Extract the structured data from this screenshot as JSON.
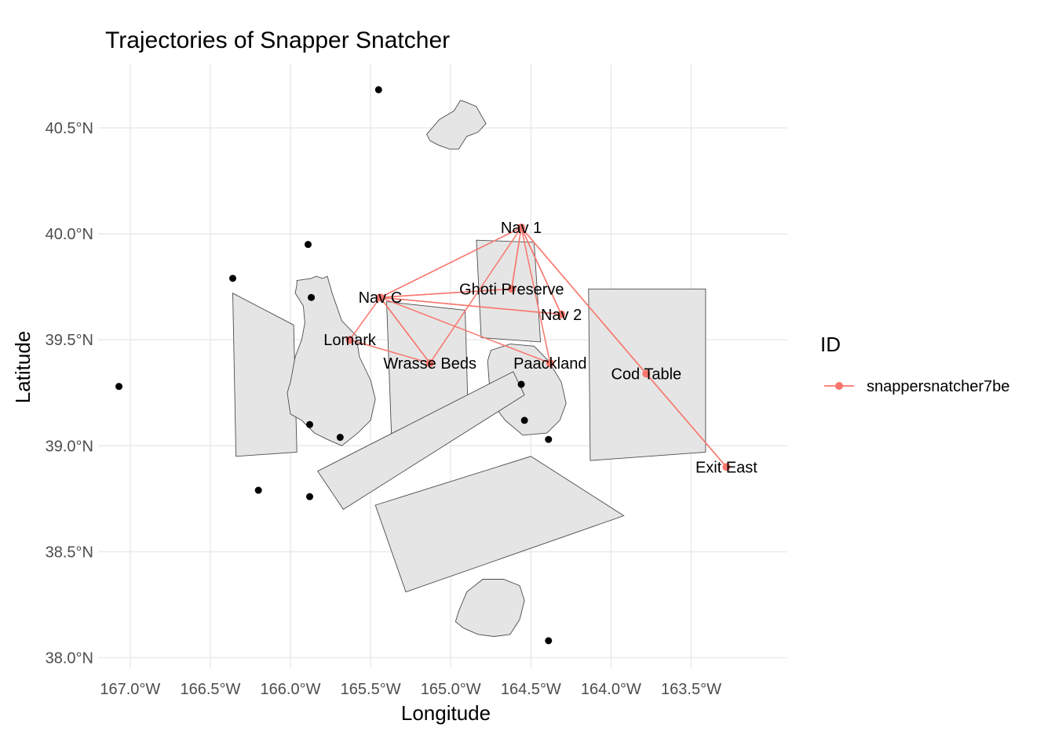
{
  "chart_data": {
    "type": "scatter",
    "title": "Trajectories of Snapper Snatcher",
    "xlabel": "Longitude",
    "ylabel": "Latitude",
    "xlim": [
      -167.2,
      -162.9
    ],
    "ylim": [
      37.95,
      40.8
    ],
    "x_ticks": [
      -167.0,
      -166.5,
      -166.0,
      -165.5,
      -165.0,
      -164.5,
      -164.0,
      -163.5
    ],
    "x_tick_labels": [
      "167.0°W",
      "166.5°W",
      "166.0°W",
      "165.5°W",
      "165.0°W",
      "164.5°W",
      "164.0°W",
      "163.5°W"
    ],
    "y_ticks": [
      38.0,
      38.5,
      39.0,
      39.5,
      40.0,
      40.5
    ],
    "y_tick_labels": [
      "38.0°N",
      "38.5°N",
      "39.0°N",
      "39.5°N",
      "40.0°N",
      "40.5°N"
    ],
    "grid": true,
    "legend": {
      "title": "ID",
      "position": "right",
      "entries": [
        {
          "label": "snappersnatcher7be",
          "color": "#F8766D"
        }
      ]
    },
    "locations": [
      {
        "name": "Nav 1",
        "x": -164.56,
        "y": 40.03
      },
      {
        "name": "Nav C",
        "x": -165.44,
        "y": 39.7
      },
      {
        "name": "Ghoti Preserve",
        "x": -164.62,
        "y": 39.74
      },
      {
        "name": "Nav 2",
        "x": -164.31,
        "y": 39.62
      },
      {
        "name": "Lomark",
        "x": -165.63,
        "y": 39.5
      },
      {
        "name": "Wrasse Beds",
        "x": -165.13,
        "y": 39.39
      },
      {
        "name": "Paackland",
        "x": -164.38,
        "y": 39.39
      },
      {
        "name": "Cod Table",
        "x": -163.78,
        "y": 39.34
      },
      {
        "name": "Exit East",
        "x": -163.28,
        "y": 38.9
      }
    ],
    "trajectory": {
      "id": "snappersnatcher7be",
      "color": "#F8766D",
      "path": [
        "Lomark",
        "Nav C",
        "Nav 1",
        "Wrasse Beds",
        "Nav C",
        "Ghoti Preserve",
        "Nav 1",
        "Nav 2",
        "Nav C",
        "Nav 1",
        "Paackland",
        "Nav C",
        "Nav 2",
        "Nav 1",
        "Cod Table",
        "Exit East",
        "Cod Table",
        "Nav 1",
        "Ghoti Preserve",
        "Nav C",
        "Wrasse Beds",
        "Lomark"
      ]
    },
    "black_points": [
      {
        "x": -165.45,
        "y": 40.68
      },
      {
        "x": -165.89,
        "y": 39.95
      },
      {
        "x": -166.36,
        "y": 39.79
      },
      {
        "x": -165.87,
        "y": 39.7
      },
      {
        "x": -167.07,
        "y": 39.28
      },
      {
        "x": -164.56,
        "y": 39.29
      },
      {
        "x": -164.54,
        "y": 39.12
      },
      {
        "x": -165.88,
        "y": 39.1
      },
      {
        "x": -165.69,
        "y": 39.04
      },
      {
        "x": -164.39,
        "y": 39.03
      },
      {
        "x": -166.2,
        "y": 38.79
      },
      {
        "x": -165.88,
        "y": 38.76
      },
      {
        "x": -164.39,
        "y": 38.08
      }
    ],
    "regions": [
      {
        "name": "north-island",
        "points": [
          [
            -165.15,
            40.47
          ],
          [
            -165.07,
            40.54
          ],
          [
            -164.98,
            40.58
          ],
          [
            -164.94,
            40.63
          ],
          [
            -164.9,
            40.62
          ],
          [
            -164.84,
            40.6
          ],
          [
            -164.81,
            40.56
          ],
          [
            -164.78,
            40.52
          ],
          [
            -164.83,
            40.48
          ],
          [
            -164.9,
            40.46
          ],
          [
            -164.95,
            40.4
          ],
          [
            -165.01,
            40.4
          ],
          [
            -165.08,
            40.42
          ],
          [
            -165.13,
            40.44
          ]
        ]
      },
      {
        "name": "west-zone",
        "points": [
          [
            -166.36,
            39.72
          ],
          [
            -165.98,
            39.57
          ],
          [
            -165.96,
            38.97
          ],
          [
            -166.34,
            38.95
          ]
        ]
      },
      {
        "name": "main-island",
        "points": [
          [
            -165.96,
            39.78
          ],
          [
            -165.87,
            39.79
          ],
          [
            -165.84,
            39.8
          ],
          [
            -165.8,
            39.79
          ],
          [
            -165.77,
            39.8
          ],
          [
            -165.74,
            39.72
          ],
          [
            -165.68,
            39.59
          ],
          [
            -165.59,
            39.52
          ],
          [
            -165.57,
            39.42
          ],
          [
            -165.5,
            39.31
          ],
          [
            -165.47,
            39.22
          ],
          [
            -165.5,
            39.12
          ],
          [
            -165.58,
            39.06
          ],
          [
            -165.68,
            39.0
          ],
          [
            -165.77,
            39.03
          ],
          [
            -165.85,
            39.06
          ],
          [
            -165.93,
            39.12
          ],
          [
            -166.0,
            39.15
          ],
          [
            -166.02,
            39.25
          ],
          [
            -166.0,
            39.3
          ],
          [
            -165.97,
            39.42
          ],
          [
            -165.93,
            39.5
          ],
          [
            -165.91,
            39.58
          ],
          [
            -165.92,
            39.66
          ],
          [
            -165.97,
            39.72
          ],
          [
            -165.96,
            39.76
          ]
        ]
      },
      {
        "name": "middle-zone",
        "points": [
          [
            -165.4,
            39.68
          ],
          [
            -164.91,
            39.64
          ],
          [
            -164.89,
            39.1
          ],
          [
            -165.37,
            39.05
          ]
        ]
      },
      {
        "name": "north-east-zone",
        "points": [
          [
            -164.84,
            39.97
          ],
          [
            -164.48,
            39.96
          ],
          [
            -164.44,
            39.49
          ],
          [
            -164.81,
            39.51
          ]
        ]
      },
      {
        "name": "east-island",
        "points": [
          [
            -164.75,
            39.45
          ],
          [
            -164.63,
            39.48
          ],
          [
            -164.48,
            39.47
          ],
          [
            -164.39,
            39.4
          ],
          [
            -164.31,
            39.3
          ],
          [
            -164.28,
            39.2
          ],
          [
            -164.32,
            39.12
          ],
          [
            -164.4,
            39.06
          ],
          [
            -164.55,
            39.05
          ],
          [
            -164.66,
            39.12
          ],
          [
            -164.74,
            39.2
          ],
          [
            -164.76,
            39.3
          ],
          [
            -164.77,
            39.4
          ]
        ]
      },
      {
        "name": "east-zone",
        "points": [
          [
            -164.14,
            39.74
          ],
          [
            -163.41,
            39.74
          ],
          [
            -163.41,
            38.97
          ],
          [
            -164.13,
            38.93
          ]
        ]
      },
      {
        "name": "south-strip-1",
        "points": [
          [
            -165.83,
            38.88
          ],
          [
            -164.61,
            39.35
          ],
          [
            -164.54,
            39.24
          ],
          [
            -165.67,
            38.7
          ]
        ]
      },
      {
        "name": "south-strip-2",
        "points": [
          [
            -165.47,
            38.72
          ],
          [
            -164.5,
            38.95
          ],
          [
            -163.92,
            38.67
          ],
          [
            -165.28,
            38.31
          ]
        ]
      },
      {
        "name": "south-island",
        "points": [
          [
            -164.95,
            38.22
          ],
          [
            -164.9,
            38.31
          ],
          [
            -164.8,
            38.37
          ],
          [
            -164.67,
            38.37
          ],
          [
            -164.57,
            38.34
          ],
          [
            -164.54,
            38.27
          ],
          [
            -164.57,
            38.18
          ],
          [
            -164.63,
            38.11
          ],
          [
            -164.73,
            38.1
          ],
          [
            -164.83,
            38.11
          ],
          [
            -164.92,
            38.14
          ],
          [
            -164.97,
            38.17
          ]
        ]
      }
    ]
  }
}
